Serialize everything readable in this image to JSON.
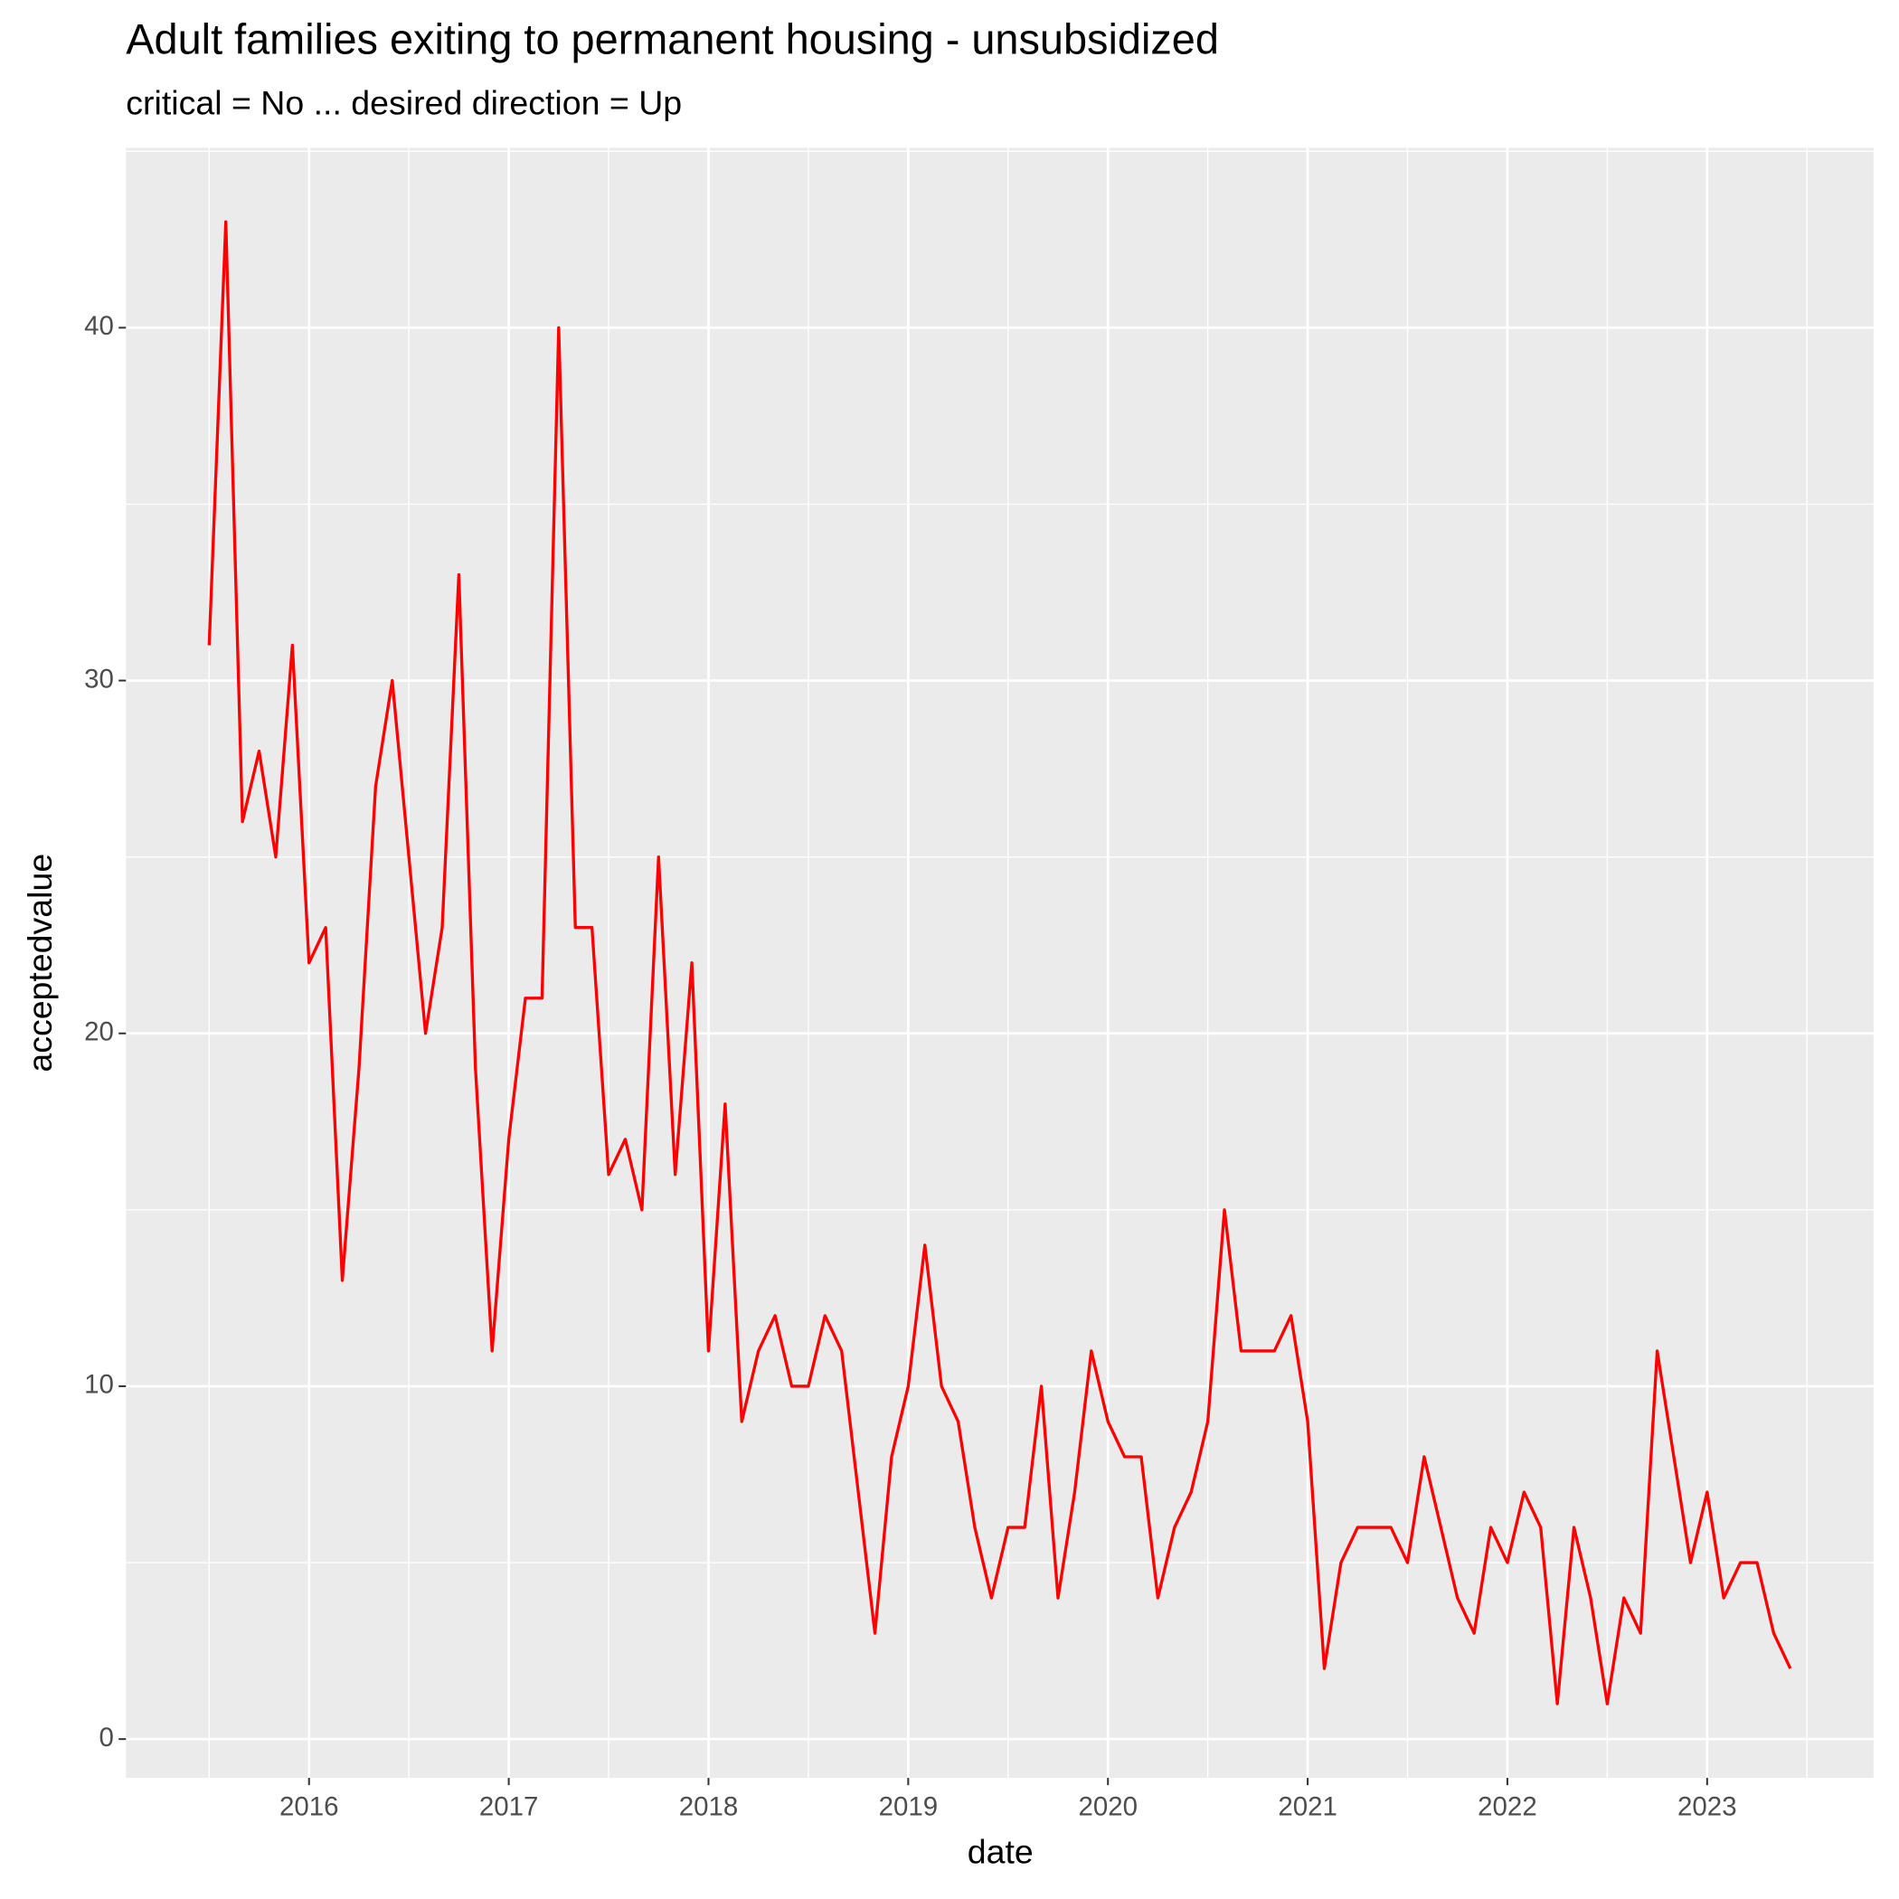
{
  "chart_data": {
    "type": "line",
    "title": "Adult families exiting to permanent housing - unsubsidized",
    "subtitle": "critical = No ... desired direction = Up",
    "x_label": "date",
    "y_label": "acceptedvalue",
    "x": [
      "2015-07",
      "2015-08",
      "2015-09",
      "2015-10",
      "2015-11",
      "2015-12",
      "2016-01",
      "2016-02",
      "2016-03",
      "2016-04",
      "2016-05",
      "2016-06",
      "2016-07",
      "2016-08",
      "2016-09",
      "2016-10",
      "2016-11",
      "2016-12",
      "2017-01",
      "2017-02",
      "2017-03",
      "2017-04",
      "2017-05",
      "2017-06",
      "2017-07",
      "2017-08",
      "2017-09",
      "2017-10",
      "2017-11",
      "2017-12",
      "2018-01",
      "2018-02",
      "2018-03",
      "2018-04",
      "2018-05",
      "2018-06",
      "2018-07",
      "2018-08",
      "2018-09",
      "2018-10",
      "2018-11",
      "2018-12",
      "2019-01",
      "2019-02",
      "2019-03",
      "2019-04",
      "2019-05",
      "2019-06",
      "2019-07",
      "2019-08",
      "2019-09",
      "2019-10",
      "2019-11",
      "2019-12",
      "2020-01",
      "2020-02",
      "2020-03",
      "2020-04",
      "2020-05",
      "2020-06",
      "2020-07",
      "2020-08",
      "2020-09",
      "2020-10",
      "2020-11",
      "2020-12",
      "2021-01",
      "2021-02",
      "2021-03",
      "2021-04",
      "2021-05",
      "2021-06",
      "2021-07",
      "2021-08",
      "2021-09",
      "2021-10",
      "2021-11",
      "2021-12",
      "2022-01",
      "2022-02",
      "2022-03",
      "2022-04",
      "2022-05",
      "2022-06",
      "2022-07",
      "2022-08",
      "2022-09",
      "2022-10",
      "2022-11",
      "2022-12",
      "2023-01",
      "2023-02",
      "2023-03",
      "2023-04",
      "2023-05",
      "2023-06"
    ],
    "series": [
      {
        "name": "acceptedvalue",
        "color": "#ff0000",
        "values": [
          31,
          43,
          26,
          28,
          25,
          31,
          22,
          23,
          13,
          19,
          27,
          30,
          25,
          20,
          23,
          33,
          19,
          11,
          17,
          21,
          21,
          40,
          23,
          23,
          16,
          17,
          15,
          25,
          16,
          22,
          11,
          18,
          9,
          11,
          12,
          10,
          10,
          12,
          11,
          7,
          3,
          8,
          10,
          14,
          10,
          9,
          6,
          4,
          6,
          6,
          10,
          4,
          7,
          11,
          9,
          8,
          8,
          4,
          6,
          7,
          9,
          15,
          11,
          11,
          11,
          12,
          9,
          2,
          5,
          6,
          6,
          6,
          5,
          8,
          6,
          4,
          3,
          6,
          5,
          7,
          6,
          1,
          6,
          4,
          1,
          4,
          3,
          11,
          8,
          5,
          7,
          4,
          5,
          5,
          3,
          2
        ]
      }
    ],
    "xlim": [
      "2015-02",
      "2023-11"
    ],
    "xticks": [
      "2016",
      "2017",
      "2018",
      "2019",
      "2020",
      "2021",
      "2022",
      "2023"
    ],
    "ylim": [
      -1.1,
      45.1
    ],
    "yticks": [
      0,
      10,
      20,
      30,
      40
    ],
    "grid": true
  }
}
